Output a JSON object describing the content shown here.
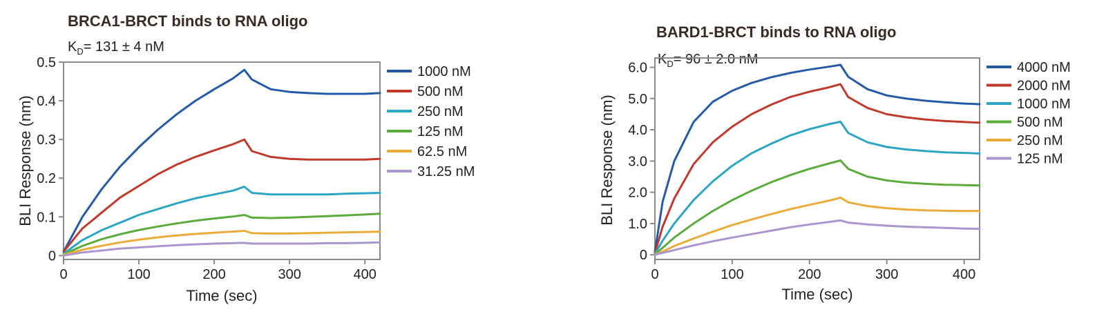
{
  "chart_data": [
    {
      "type": "line",
      "title": "BRCA1-BRCT binds to RNA oligo",
      "kd": {
        "prefix": "K",
        "subscript": "D",
        "text": "= 131 ± 4 nM"
      },
      "xlabel": "Time (sec)",
      "ylabel": "BLI Response (nm)",
      "xlim": [
        0,
        420
      ],
      "ylim": [
        -0.01,
        0.5
      ],
      "xticks": [
        0,
        100,
        200,
        300,
        400
      ],
      "xtick_labels": [
        "0",
        "100",
        "200",
        "300",
        "400"
      ],
      "yticks": [
        0,
        0.1,
        0.2,
        0.3,
        0.4,
        0.5
      ],
      "ytick_labels": [
        "0",
        "0.1",
        "0.2",
        "0.3",
        "0.4",
        "0.5"
      ],
      "legend_position": "right",
      "series": [
        {
          "name": "1000 nM",
          "color": "#2359a6",
          "x": [
            0,
            25,
            50,
            75,
            100,
            125,
            150,
            175,
            200,
            225,
            240,
            250,
            275,
            300,
            325,
            350,
            375,
            400,
            420
          ],
          "y": [
            0.01,
            0.1,
            0.17,
            0.23,
            0.28,
            0.325,
            0.365,
            0.4,
            0.43,
            0.458,
            0.48,
            0.455,
            0.43,
            0.423,
            0.42,
            0.418,
            0.418,
            0.418,
            0.42
          ]
        },
        {
          "name": "500 nM",
          "color": "#c1392b",
          "x": [
            0,
            25,
            50,
            75,
            100,
            125,
            150,
            175,
            200,
            225,
            240,
            250,
            275,
            300,
            325,
            350,
            375,
            400,
            420
          ],
          "y": [
            0.01,
            0.07,
            0.11,
            0.15,
            0.18,
            0.21,
            0.235,
            0.255,
            0.272,
            0.288,
            0.3,
            0.27,
            0.255,
            0.25,
            0.248,
            0.248,
            0.248,
            0.248,
            0.25
          ]
        },
        {
          "name": "250 nM",
          "color": "#2aa6c2",
          "x": [
            0,
            25,
            50,
            75,
            100,
            125,
            150,
            175,
            200,
            225,
            240,
            250,
            275,
            300,
            325,
            350,
            375,
            400,
            420
          ],
          "y": [
            0.005,
            0.04,
            0.065,
            0.085,
            0.105,
            0.12,
            0.135,
            0.148,
            0.158,
            0.168,
            0.178,
            0.162,
            0.158,
            0.158,
            0.158,
            0.158,
            0.16,
            0.161,
            0.162
          ]
        },
        {
          "name": "125 nM",
          "color": "#5aab3c",
          "x": [
            0,
            25,
            50,
            75,
            100,
            125,
            150,
            175,
            200,
            225,
            240,
            250,
            275,
            300,
            325,
            350,
            375,
            400,
            420
          ],
          "y": [
            0.003,
            0.025,
            0.042,
            0.055,
            0.066,
            0.075,
            0.083,
            0.09,
            0.096,
            0.101,
            0.105,
            0.098,
            0.097,
            0.098,
            0.1,
            0.102,
            0.104,
            0.106,
            0.108
          ]
        },
        {
          "name": "62.5 nM",
          "color": "#e9ab3a",
          "x": [
            0,
            25,
            50,
            75,
            100,
            125,
            150,
            175,
            200,
            225,
            240,
            250,
            275,
            300,
            325,
            350,
            375,
            400,
            420
          ],
          "y": [
            0.002,
            0.015,
            0.025,
            0.034,
            0.041,
            0.047,
            0.052,
            0.056,
            0.059,
            0.062,
            0.064,
            0.058,
            0.057,
            0.057,
            0.058,
            0.059,
            0.06,
            0.061,
            0.062
          ]
        },
        {
          "name": "31.25 nM",
          "color": "#a996cf",
          "x": [
            0,
            25,
            50,
            75,
            100,
            125,
            150,
            175,
            200,
            225,
            240,
            250,
            275,
            300,
            325,
            350,
            375,
            400,
            420
          ],
          "y": [
            0.0,
            0.008,
            0.013,
            0.018,
            0.021,
            0.024,
            0.027,
            0.029,
            0.031,
            0.032,
            0.033,
            0.031,
            0.031,
            0.031,
            0.031,
            0.032,
            0.032,
            0.033,
            0.034
          ]
        }
      ]
    },
    {
      "type": "line",
      "title": "BARD1-BRCT binds to RNA oligo",
      "kd": {
        "prefix": "K",
        "subscript": "D",
        "text": "= 96 ± 2.0 nM"
      },
      "xlabel": "Time (sec)",
      "ylabel": "BLI Response (nm)",
      "xlim": [
        0,
        420
      ],
      "ylim": [
        -0.15,
        6.3
      ],
      "xticks": [
        0,
        100,
        200,
        300,
        400
      ],
      "xtick_labels": [
        "0",
        "100",
        "200",
        "300",
        "400"
      ],
      "yticks": [
        0,
        1.0,
        2.0,
        3.0,
        4.0,
        5.0,
        6.0
      ],
      "ytick_labels": [
        "0",
        "1.0",
        "2.0",
        "3.0",
        "4.0",
        "5.0",
        "6.0"
      ],
      "legend_position": "right",
      "series": [
        {
          "name": "4000 nM",
          "color": "#2359a6",
          "x": [
            0,
            10,
            25,
            50,
            75,
            100,
            125,
            150,
            175,
            200,
            225,
            240,
            250,
            275,
            300,
            325,
            350,
            375,
            400,
            420
          ],
          "y": [
            0.1,
            1.7,
            3.0,
            4.25,
            4.9,
            5.25,
            5.5,
            5.68,
            5.82,
            5.93,
            6.02,
            6.08,
            5.7,
            5.3,
            5.1,
            5.0,
            4.93,
            4.88,
            4.84,
            4.82
          ]
        },
        {
          "name": "2000 nM",
          "color": "#c1392b",
          "x": [
            0,
            10,
            25,
            50,
            75,
            100,
            125,
            150,
            175,
            200,
            225,
            240,
            250,
            275,
            300,
            325,
            350,
            375,
            400,
            420
          ],
          "y": [
            0.05,
            0.9,
            1.8,
            2.9,
            3.6,
            4.1,
            4.5,
            4.8,
            5.05,
            5.22,
            5.36,
            5.46,
            5.05,
            4.7,
            4.5,
            4.4,
            4.33,
            4.28,
            4.25,
            4.23
          ]
        },
        {
          "name": "1000 nM",
          "color": "#2aa6c2",
          "x": [
            0,
            10,
            25,
            50,
            75,
            100,
            125,
            150,
            175,
            200,
            225,
            240,
            250,
            275,
            300,
            325,
            350,
            375,
            400,
            420
          ],
          "y": [
            0.03,
            0.45,
            1.0,
            1.75,
            2.35,
            2.85,
            3.25,
            3.55,
            3.82,
            4.02,
            4.18,
            4.26,
            3.9,
            3.6,
            3.45,
            3.37,
            3.32,
            3.28,
            3.26,
            3.24
          ]
        },
        {
          "name": "500 nM",
          "color": "#5aab3c",
          "x": [
            0,
            10,
            25,
            50,
            75,
            100,
            125,
            150,
            175,
            200,
            225,
            240,
            250,
            275,
            300,
            325,
            350,
            375,
            400,
            420
          ],
          "y": [
            0.02,
            0.22,
            0.55,
            1.0,
            1.4,
            1.75,
            2.05,
            2.32,
            2.55,
            2.75,
            2.92,
            3.02,
            2.75,
            2.5,
            2.38,
            2.31,
            2.27,
            2.24,
            2.23,
            2.22
          ]
        },
        {
          "name": "250 nM",
          "color": "#e9ab3a",
          "x": [
            0,
            10,
            25,
            50,
            75,
            100,
            125,
            150,
            175,
            200,
            225,
            240,
            250,
            275,
            300,
            325,
            350,
            375,
            400,
            420
          ],
          "y": [
            0.01,
            0.1,
            0.28,
            0.52,
            0.74,
            0.95,
            1.13,
            1.3,
            1.46,
            1.6,
            1.73,
            1.83,
            1.68,
            1.56,
            1.49,
            1.45,
            1.42,
            1.41,
            1.4,
            1.4
          ]
        },
        {
          "name": "125 nM",
          "color": "#a996cf",
          "x": [
            0,
            10,
            25,
            50,
            75,
            100,
            125,
            150,
            175,
            200,
            225,
            240,
            250,
            275,
            300,
            325,
            350,
            375,
            400,
            420
          ],
          "y": [
            0.0,
            0.06,
            0.15,
            0.3,
            0.43,
            0.55,
            0.66,
            0.77,
            0.88,
            0.97,
            1.05,
            1.1,
            1.03,
            0.97,
            0.93,
            0.9,
            0.88,
            0.86,
            0.84,
            0.83
          ]
        }
      ]
    }
  ]
}
